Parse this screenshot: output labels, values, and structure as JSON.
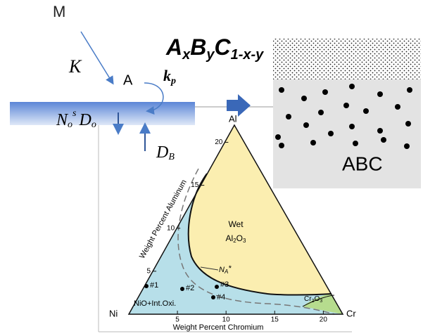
{
  "top": {
    "m": "M",
    "k": "K",
    "a": "A",
    "kp": [
      "k",
      "p"
    ],
    "formula": [
      "A",
      "x",
      "B",
      "y",
      "C",
      "1-x-y"
    ],
    "flux": [
      "N",
      "o",
      "s",
      "D",
      "o"
    ],
    "db": [
      "D",
      "B"
    ],
    "abc": "ABC"
  },
  "ternary": {
    "apex_top": "Al",
    "apex_left": "Ni",
    "apex_right": "Cr",
    "left_axis_title": "Weight Percent Aluminum",
    "bottom_axis_title": "Weight Percent Chromium",
    "left_ticks": [
      5,
      10,
      15,
      20
    ],
    "bottom_ticks": [
      5,
      10,
      15,
      20
    ],
    "region_al2o3": [
      "Wet",
      "Al",
      "2",
      "O",
      "3"
    ],
    "region_cr2o3": [
      "Cr",
      "2",
      "O",
      "3"
    ],
    "region_nio": "NiO+Int.Oxi.",
    "boundary_label": [
      "N",
      "A",
      "*"
    ],
    "points": [
      "#1",
      "#2",
      "#3",
      "#4"
    ]
  }
}
